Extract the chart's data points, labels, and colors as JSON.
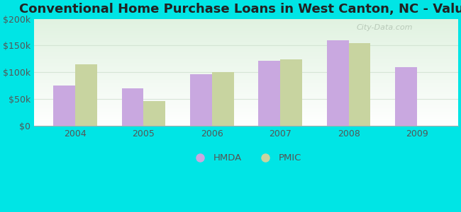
{
  "title": "Conventional Home Purchase Loans in West Canton, NC - Value",
  "years": [
    "2004",
    "2005",
    "2006",
    "2007",
    "2008",
    "2009"
  ],
  "hmda_values": [
    75000,
    70000,
    97000,
    122000,
    160000,
    110000
  ],
  "pmic_values": [
    115000,
    47000,
    101000,
    124000,
    155000,
    null
  ],
  "hmda_color": "#c9a8e0",
  "pmic_color": "#c8d4a0",
  "background_color": "#00e5e5",
  "bar_width": 0.32,
  "ylim": [
    0,
    200000
  ],
  "yticks": [
    0,
    50000,
    100000,
    150000,
    200000
  ],
  "ytick_labels": [
    "$0",
    "$50k",
    "$100k",
    "$150k",
    "$200k"
  ],
  "title_fontsize": 13,
  "tick_fontsize": 9,
  "legend_labels": [
    "HMDA",
    "PMIC"
  ],
  "watermark": "City-Data.com",
  "grid_color": "#ccddcc",
  "grid_alpha": 0.7
}
